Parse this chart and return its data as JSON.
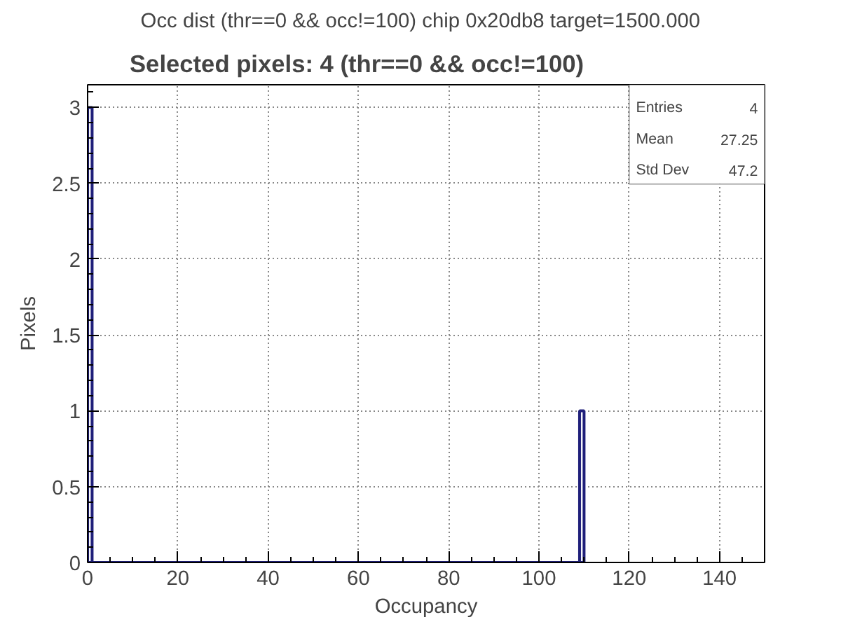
{
  "chart_data": {
    "type": "histogram",
    "title": "Occ dist (thr==0 && occ!=100)  chip 0x20db8  target=1500.000",
    "subtitle": "Selected pixels: 4 (thr==0 && occ!=100)",
    "xlabel": "Occupancy",
    "ylabel": "Pixels",
    "bins": [
      0,
      1,
      109,
      110
    ],
    "values": [
      3,
      0,
      1
    ],
    "color": "#1f1f7a",
    "xlim": [
      0,
      150
    ],
    "xticks": [
      0,
      20,
      40,
      60,
      80,
      100,
      120,
      140
    ],
    "ylim": [
      0,
      3.15
    ],
    "yticks": [
      0,
      0.5,
      1,
      1.5,
      2,
      2.5,
      3
    ],
    "grid": true,
    "annotations": [
      "Entries",
      "4",
      "Mean",
      "27.25",
      "Std Dev",
      "47.2"
    ]
  }
}
